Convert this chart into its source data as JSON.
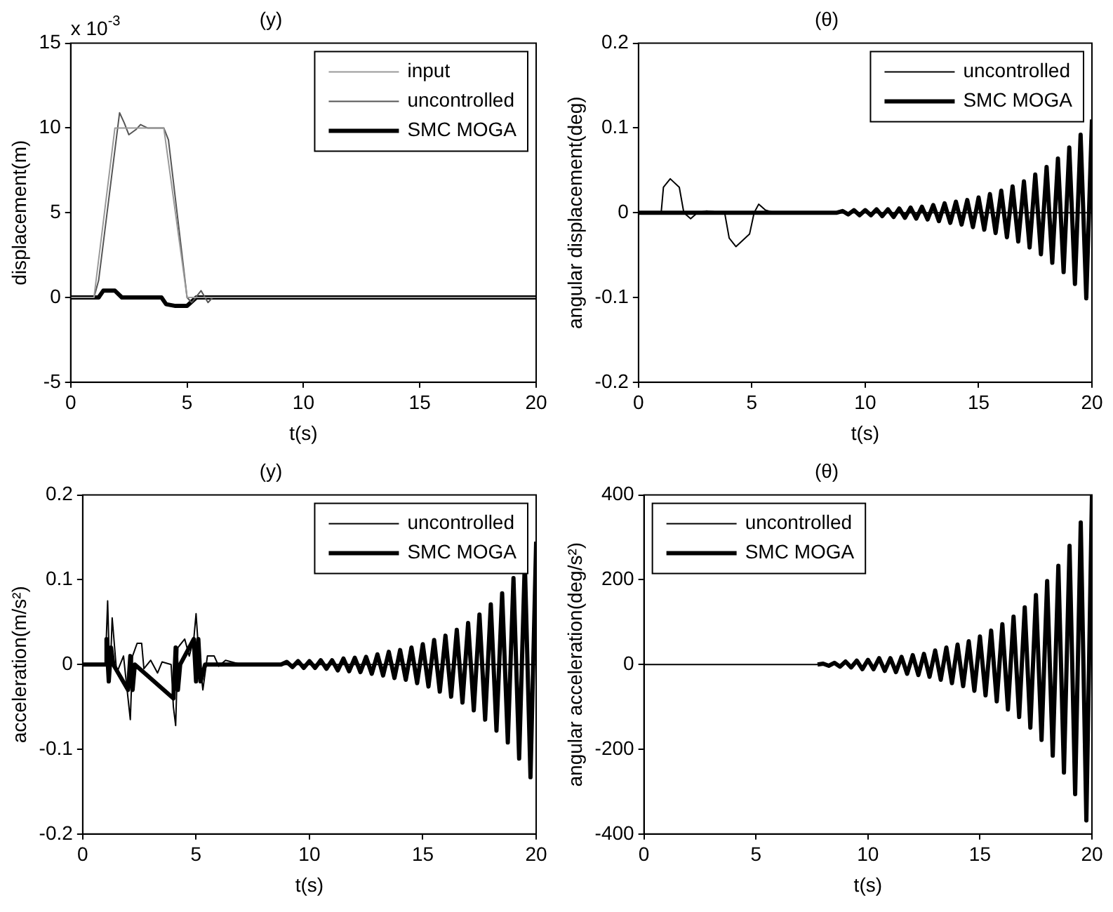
{
  "chart_data": [
    {
      "type": "line",
      "title": "(y)",
      "xlabel": "t(s)",
      "ylabel": "displacement(m)",
      "xlim": [
        0,
        20
      ],
      "xticks": [
        0,
        5,
        10,
        15,
        20
      ],
      "ylim": [
        -5,
        15
      ],
      "yticks": [
        -5,
        0,
        5,
        10,
        15
      ],
      "legend": "top right",
      "annotations": [
        "x 10$^{-3}$"
      ],
      "series": [
        {
          "name": "input",
          "color": "#999999",
          "x": [
            0,
            1,
            1.9,
            4,
            5,
            20
          ],
          "values": [
            0,
            0,
            10,
            10,
            0,
            0
          ]
        },
        {
          "name": "uncontrolled",
          "color": "#555555",
          "x": [
            0,
            1,
            1.2,
            2.1,
            2.3,
            2.5,
            2.8,
            3.0,
            3.3,
            4,
            4.2,
            5.0,
            5.2,
            5.6,
            5.9,
            6.1,
            20
          ],
          "values": [
            0,
            0,
            1,
            10.9,
            10.3,
            9.6,
            9.9,
            10.2,
            10,
            10,
            9.3,
            0,
            -0.3,
            0.4,
            -0.3,
            0,
            0
          ]
        },
        {
          "name": "SMC MOGA",
          "color": "#000000",
          "x": [
            0,
            1.2,
            1.4,
            1.9,
            2.2,
            3.9,
            4.1,
            4.5,
            5.0,
            5.4,
            20
          ],
          "values": [
            0,
            0,
            0.4,
            0.4,
            0,
            0,
            -0.4,
            -0.5,
            -0.5,
            0,
            0
          ]
        }
      ]
    },
    {
      "type": "line",
      "title": "(θ)",
      "xlabel": "t(s)",
      "ylabel": "angular displacement(deg)",
      "xlim": [
        0,
        20
      ],
      "xticks": [
        0,
        5,
        10,
        15,
        20
      ],
      "ylim": [
        -0.2,
        0.2
      ],
      "yticks": [
        -0.2,
        -0.1,
        0,
        0.1,
        0.2
      ],
      "legend": "top right",
      "series": [
        {
          "name": "uncontrolled",
          "color": "#000000",
          "x": [
            0,
            1,
            1.1,
            1.4,
            1.8,
            2,
            2.3,
            2.6,
            3,
            3.8,
            4,
            4.3,
            4.9,
            5.1,
            5.3,
            5.6,
            6,
            20
          ],
          "values": [
            0,
            0,
            0.03,
            0.04,
            0.03,
            0,
            -0.007,
            0,
            0.002,
            0,
            -0.03,
            -0.04,
            -0.025,
            0,
            0.01,
            0.003,
            0,
            0
          ]
        },
        {
          "name": "SMC MOGA",
          "color": "#000000",
          "x": [
            0,
            8.75,
            9,
            9.25,
            9.5,
            9.75,
            10,
            10.25,
            10.5,
            10.75,
            11,
            11.25,
            11.5,
            11.75,
            12,
            12.25,
            12.5,
            12.75,
            13,
            13.25,
            13.5,
            13.75,
            14,
            14.25,
            14.5,
            14.75,
            15,
            15.25,
            15.5,
            15.75,
            16,
            16.25,
            16.5,
            16.75,
            17,
            17.25,
            17.5,
            17.75,
            18,
            18.25,
            18.5,
            18.75,
            19,
            19.25,
            19.5,
            19.75,
            20
          ],
          "values": [
            0,
            0,
            0.002,
            -0.002,
            0.003,
            -0.003,
            0.003,
            -0.003,
            0.004,
            -0.004,
            0.004,
            -0.005,
            0.005,
            -0.006,
            0.006,
            -0.007,
            0.007,
            -0.008,
            0.009,
            -0.01,
            0.011,
            -0.012,
            0.013,
            -0.014,
            0.015,
            -0.017,
            0.018,
            -0.02,
            0.022,
            -0.024,
            0.026,
            -0.029,
            0.031,
            -0.034,
            0.037,
            -0.041,
            0.045,
            -0.049,
            0.054,
            -0.059,
            0.064,
            -0.07,
            0.077,
            -0.084,
            0.092,
            -0.101,
            0.11
          ]
        }
      ]
    },
    {
      "type": "line",
      "title": "(y)",
      "xlabel": "t(s)",
      "ylabel": "acceleration(m/s²)",
      "xlim": [
        0,
        20
      ],
      "xticks": [
        0,
        5,
        10,
        15,
        20
      ],
      "ylim": [
        -0.2,
        0.2
      ],
      "yticks": [
        -0.2,
        -0.1,
        0,
        0.1,
        0.2
      ],
      "legend": "top right",
      "series": [
        {
          "name": "uncontrolled",
          "color": "#000000",
          "x": [
            0,
            1,
            1.1,
            1.2,
            1.3,
            1.5,
            1.8,
            2.0,
            2.1,
            2.2,
            2.4,
            2.6,
            2.7,
            3.0,
            3.3,
            3.5,
            3.9,
            4.0,
            4.1,
            4.2,
            4.5,
            4.7,
            4.9,
            5.0,
            5.1,
            5.3,
            5.5,
            5.8,
            6.0,
            6.3,
            7,
            20
          ],
          "values": [
            0,
            0,
            0.075,
            -0.02,
            0.055,
            -0.01,
            0.01,
            -0.04,
            -0.065,
            0.01,
            0.025,
            0.025,
            -0.005,
            0.005,
            -0.01,
            0.003,
            0,
            -0.05,
            -0.072,
            0.02,
            0.03,
            0.01,
            0.03,
            0.06,
            0.02,
            -0.03,
            0.01,
            0.01,
            -0.002,
            0.005,
            0,
            0
          ]
        },
        {
          "name": "SMC MOGA",
          "color": "#000000",
          "x": [
            0,
            1,
            1.05,
            1.15,
            1.25,
            1.35,
            2.0,
            2.1,
            2.2,
            2.3,
            4.0,
            4.1,
            4.2,
            4.3,
            4.9,
            5.0,
            5.1,
            5.2,
            5.4,
            8.75,
            9,
            9.25,
            9.5,
            9.75,
            10,
            10.25,
            10.5,
            10.75,
            11,
            11.25,
            11.5,
            11.75,
            12,
            12.25,
            12.5,
            12.75,
            13,
            13.25,
            13.5,
            13.75,
            14,
            14.25,
            14.5,
            14.75,
            15,
            15.25,
            15.5,
            15.75,
            16,
            16.25,
            16.5,
            16.75,
            17,
            17.25,
            17.5,
            17.75,
            18,
            18.25,
            18.5,
            18.75,
            19,
            19.25,
            19.5,
            19.75,
            20
          ],
          "values": [
            0,
            0,
            0.03,
            -0.02,
            0.02,
            0,
            -0.03,
            0.01,
            -0.03,
            0,
            -0.04,
            0.02,
            -0.03,
            0,
            0.03,
            -0.02,
            0.03,
            -0.02,
            0,
            0,
            0.003,
            -0.003,
            0.004,
            -0.004,
            0.004,
            -0.004,
            0.005,
            -0.005,
            0.005,
            -0.007,
            0.007,
            -0.008,
            0.008,
            -0.009,
            0.009,
            -0.011,
            0.012,
            -0.013,
            0.015,
            -0.016,
            0.017,
            -0.018,
            0.02,
            -0.022,
            0.024,
            -0.026,
            0.029,
            -0.032,
            0.034,
            -0.038,
            0.041,
            -0.045,
            0.049,
            -0.054,
            0.059,
            -0.065,
            0.071,
            -0.078,
            0.084,
            -0.092,
            0.102,
            -0.111,
            0.121,
            -0.133,
            0.145
          ]
        }
      ]
    },
    {
      "type": "line",
      "title": "(θ)",
      "xlabel": "t(s)",
      "ylabel": "angular acceleration(deg/s²)",
      "xlim": [
        0,
        20
      ],
      "xticks": [
        0,
        5,
        10,
        15,
        20
      ],
      "ylim": [
        -400,
        400
      ],
      "yticks": [
        -400,
        -200,
        0,
        200,
        400
      ],
      "legend": "top left",
      "series": [
        {
          "name": "uncontrolled",
          "color": "#000000",
          "x": [
            0,
            7.75
          ],
          "values": [
            0,
            0
          ]
        },
        {
          "name": "SMC MOGA",
          "color": "#000000",
          "x": [
            7.75,
            8,
            8.25,
            8.5,
            8.75,
            9,
            9.25,
            9.5,
            9.75,
            10,
            10.25,
            10.5,
            10.75,
            11,
            11.25,
            11.5,
            11.75,
            12,
            12.25,
            12.5,
            12.75,
            13,
            13.25,
            13.5,
            13.75,
            14,
            14.25,
            14.5,
            14.75,
            15,
            15.25,
            15.5,
            15.75,
            16,
            16.25,
            16.5,
            16.75,
            17,
            17.25,
            17.5,
            17.75,
            18,
            18.25,
            18.5,
            18.75,
            19,
            19.25,
            19.5,
            19.75,
            20
          ],
          "values": [
            0,
            2,
            -3,
            4,
            -5,
            7,
            -7,
            9,
            -11,
            11,
            -11,
            15,
            -15,
            15,
            -18,
            18,
            -22,
            22,
            -25,
            25,
            -29,
            33,
            -36,
            40,
            -44,
            47,
            -51,
            55,
            -62,
            66,
            -73,
            80,
            -87,
            95,
            -106,
            113,
            -124,
            135,
            -149,
            164,
            -178,
            197,
            -215,
            233,
            -255,
            280,
            -306,
            335,
            -368,
            400
          ]
        }
      ]
    }
  ]
}
